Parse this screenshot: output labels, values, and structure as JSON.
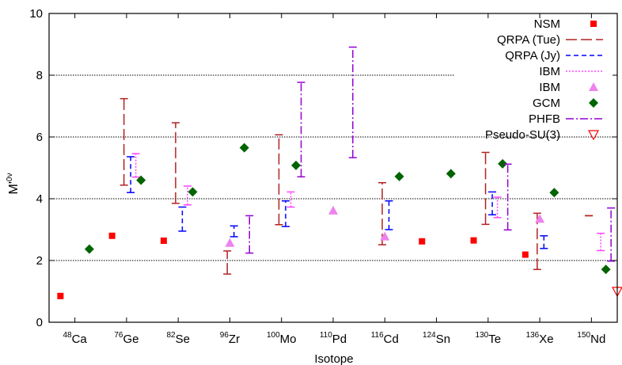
{
  "chart_data": {
    "type": "scatter",
    "title": "",
    "xlabel": "Isotope",
    "ylabel_main": "M'",
    "ylabel_sup": "0ν",
    "ylim": [
      0,
      10
    ],
    "yticks": [
      0,
      2,
      4,
      6,
      8,
      10
    ],
    "grid_lines_y": [
      2,
      4,
      6,
      8
    ],
    "legend_position": "top-right",
    "categories": [
      {
        "mass": "48",
        "symbol": "Ca"
      },
      {
        "mass": "76",
        "symbol": "Ge"
      },
      {
        "mass": "82",
        "symbol": "Se"
      },
      {
        "mass": "96",
        "symbol": "Zr"
      },
      {
        "mass": "100",
        "symbol": "Mo"
      },
      {
        "mass": "110",
        "symbol": "Pd"
      },
      {
        "mass": "116",
        "symbol": "Cd"
      },
      {
        "mass": "124",
        "symbol": "Sn"
      },
      {
        "mass": "130",
        "symbol": "Te"
      },
      {
        "mass": "136",
        "symbol": "Xe"
      },
      {
        "mass": "150",
        "symbol": "Nd"
      }
    ],
    "series": [
      {
        "name": "NSM",
        "kind": "point",
        "marker": "square",
        "color": "#ff0000",
        "offset": -0.28,
        "points": [
          [
            0,
            0.85
          ],
          [
            1,
            2.8
          ],
          [
            2,
            2.64
          ],
          [
            7,
            2.62
          ],
          [
            8,
            2.65
          ],
          [
            9,
            2.19
          ]
        ]
      },
      {
        "name": "QRPA (Tue)",
        "kind": "range",
        "style": "dash-long",
        "color": "#b22222",
        "offset": -0.05,
        "ranges": [
          [
            1,
            4.44,
            7.24
          ],
          [
            2,
            3.85,
            6.46
          ],
          [
            3,
            1.56,
            2.31
          ],
          [
            4,
            3.16,
            6.07
          ],
          [
            6,
            2.51,
            4.52
          ],
          [
            8,
            3.17,
            5.5
          ],
          [
            9,
            1.71,
            3.53
          ],
          [
            10,
            3.45,
            3.45
          ]
        ]
      },
      {
        "name": "QRPA (Jy)",
        "kind": "range",
        "style": "dash-short",
        "color": "#0000ff",
        "offset": 0.08,
        "ranges": [
          [
            1,
            4.2,
            5.36
          ],
          [
            2,
            2.95,
            3.73
          ],
          [
            3,
            2.77,
            3.12
          ],
          [
            4,
            3.1,
            3.93
          ],
          [
            6,
            3.0,
            3.93
          ],
          [
            8,
            3.48,
            4.22
          ],
          [
            9,
            2.39,
            2.8
          ]
        ]
      },
      {
        "name": "IBM",
        "kind": "range",
        "style": "dotted",
        "color": "#ff44ff",
        "offset": 0.18,
        "ranges": [
          [
            1,
            4.7,
            5.46
          ],
          [
            2,
            3.8,
            4.41
          ],
          [
            4,
            3.73,
            4.22
          ],
          [
            8,
            3.39,
            4.05
          ],
          [
            10,
            2.32,
            2.88
          ]
        ]
      },
      {
        "name": "IBM",
        "kind": "point",
        "marker": "triangle",
        "color": "#ee82ee",
        "offset": 0.0,
        "points": [
          [
            3,
            2.57
          ],
          [
            5,
            3.62
          ],
          [
            6,
            2.78
          ],
          [
            9,
            3.35
          ]
        ]
      },
      {
        "name": "GCM",
        "kind": "point",
        "marker": "diamond",
        "color": "#006400",
        "offset": 0.28,
        "points": [
          [
            0,
            2.37
          ],
          [
            1,
            4.6
          ],
          [
            2,
            4.22
          ],
          [
            3,
            5.65
          ],
          [
            4,
            5.08
          ],
          [
            6,
            4.72
          ],
          [
            7,
            4.81
          ],
          [
            8,
            5.13
          ],
          [
            9,
            4.2
          ],
          [
            10,
            1.71
          ]
        ]
      },
      {
        "name": "PHFB",
        "kind": "range",
        "style": "dashdot",
        "color": "#9400d3",
        "offset": 0.38,
        "ranges": [
          [
            3,
            2.24,
            3.45
          ],
          [
            4,
            4.71,
            7.77
          ],
          [
            5,
            5.33,
            8.91
          ],
          [
            8,
            2.99,
            5.12
          ],
          [
            10,
            1.98,
            3.7
          ]
        ]
      },
      {
        "name": "Pseudo-SU(3)",
        "kind": "point",
        "marker": "triangle-down",
        "color": "#ff0000",
        "offset": 0.5,
        "points": [
          [
            10,
            1.0
          ]
        ]
      }
    ]
  }
}
